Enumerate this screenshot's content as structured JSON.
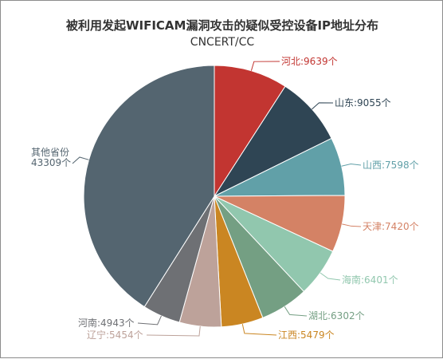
{
  "chart_data": {
    "type": "pie",
    "title": "被利用发起WIFICAM漏洞攻击的疑似受控设备IP地址分布",
    "subtitle": "CNCERT/CC",
    "slices": [
      {
        "name": "河北",
        "value": 9639,
        "label": "河北:9639个",
        "color": "#c23531"
      },
      {
        "name": "山东",
        "value": 9055,
        "label": "山东:9055个",
        "color": "#2f4554"
      },
      {
        "name": "山西",
        "value": 7598,
        "label": "山西:7598个",
        "color": "#61a0a8"
      },
      {
        "name": "天津",
        "value": 7420,
        "label": "天津:7420个",
        "color": "#d48265"
      },
      {
        "name": "海南",
        "value": 6401,
        "label": "海南:6401个",
        "color": "#91c7ae"
      },
      {
        "name": "湖北",
        "value": 6302,
        "label": "湖北:6302个",
        "color": "#749f83"
      },
      {
        "name": "江西",
        "value": 5479,
        "label": "江西:5479个",
        "color": "#ca8622"
      },
      {
        "name": "辽宁",
        "value": 5454,
        "label": "辽宁:5454个",
        "color": "#bda29a"
      },
      {
        "name": "河南",
        "value": 4943,
        "label": "河南:4943个",
        "color": "#6e7074"
      },
      {
        "name": "其他省份",
        "value": 43309,
        "label": [
          "其他省份",
          "43309个"
        ],
        "color": "#546570"
      }
    ]
  }
}
